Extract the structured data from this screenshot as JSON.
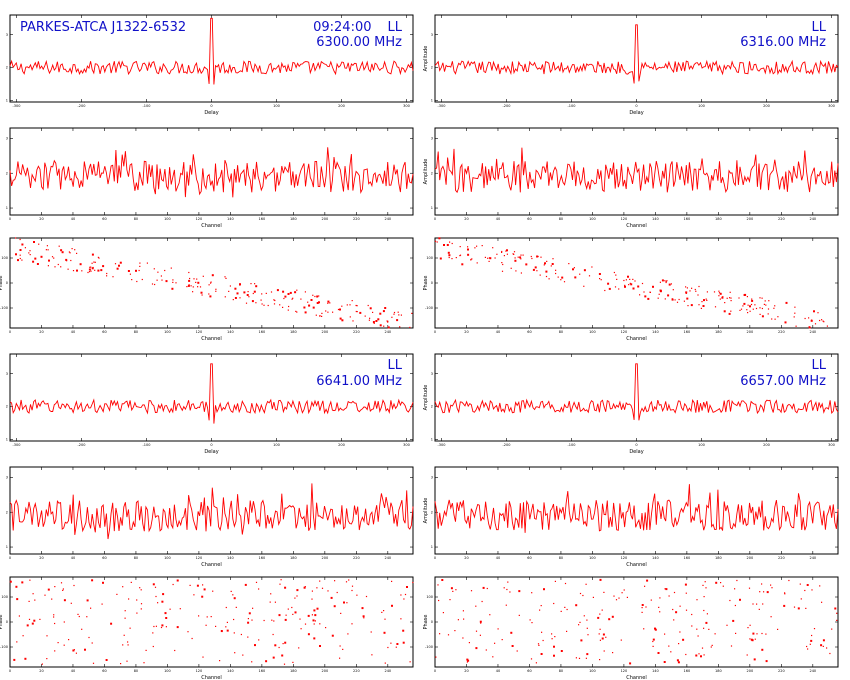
{
  "figure": {
    "title": "PARKES-ATCA J1322-6532",
    "time": "09:24:00"
  },
  "colors": {
    "trace": "#ff0000",
    "annotation": "#1010c8",
    "axis": "#000000"
  },
  "chart_data": [
    {
      "type": "line",
      "panel": "delay",
      "col": 0,
      "block": 0,
      "pol": "LL",
      "freq": "6300.00 MHz",
      "xlabel": "Delay",
      "ylabel": "",
      "x_ticks": [
        "-300",
        "-200",
        "-100",
        "0",
        "100",
        "200",
        "300"
      ],
      "y_ticks": [
        "1",
        "2",
        "3"
      ],
      "xlim": [
        -310,
        310
      ],
      "ylim": [
        0.95,
        3.6
      ],
      "peak_x": 0,
      "peak_y": 3.5,
      "baseline": 2.0,
      "noise": 0.2
    },
    {
      "type": "line",
      "panel": "delay",
      "col": 1,
      "block": 0,
      "pol": "LL",
      "freq": "6316.00 MHz",
      "xlabel": "Delay",
      "ylabel": "Amplitude",
      "x_ticks": [
        "-300",
        "-200",
        "-100",
        "0",
        "100",
        "200",
        "300"
      ],
      "y_ticks": [
        "1",
        "2",
        "3"
      ],
      "xlim": [
        -310,
        310
      ],
      "ylim": [
        0.95,
        3.6
      ],
      "peak_x": 0,
      "peak_y": 3.3,
      "baseline": 2.0,
      "noise": 0.2
    },
    {
      "type": "line",
      "panel": "amplitude",
      "col": 0,
      "block": 0,
      "xlabel": "Channel",
      "ylabel": "",
      "x_ticks": [
        "0",
        "20",
        "40",
        "60",
        "80",
        "100",
        "120",
        "140",
        "160",
        "180",
        "200",
        "220",
        "240",
        "260"
      ],
      "y_ticks": [
        "1",
        "2",
        "3"
      ],
      "xlim": [
        0,
        256
      ],
      "ylim": [
        0.8,
        3.3
      ],
      "baseline": 1.9,
      "noise": 0.45
    },
    {
      "type": "line",
      "panel": "amplitude",
      "col": 1,
      "block": 0,
      "xlabel": "Channel",
      "ylabel": "Amplitude",
      "x_ticks": [
        "0",
        "20",
        "40",
        "60",
        "80",
        "100",
        "120",
        "140",
        "160",
        "180",
        "200",
        "220",
        "240",
        "260"
      ],
      "y_ticks": [
        "1",
        "2",
        "3"
      ],
      "xlim": [
        0,
        256
      ],
      "ylim": [
        0.8,
        3.3
      ],
      "baseline": 1.9,
      "noise": 0.45
    },
    {
      "type": "scatter",
      "panel": "phase",
      "col": 0,
      "block": 0,
      "xlabel": "Channel",
      "ylabel": "Phase",
      "x_ticks": [
        "0",
        "20",
        "40",
        "60",
        "80",
        "100",
        "120",
        "140",
        "160",
        "180",
        "200",
        "220",
        "240"
      ],
      "y_ticks": [
        "-100",
        "0",
        "100"
      ],
      "xlim": [
        0,
        256
      ],
      "ylim": [
        -180,
        180
      ],
      "trend": "descending"
    },
    {
      "type": "scatter",
      "panel": "phase",
      "col": 1,
      "block": 0,
      "xlabel": "Channel",
      "ylabel": "Phase",
      "x_ticks": [
        "0",
        "20",
        "40",
        "60",
        "80",
        "100",
        "120",
        "140",
        "160",
        "180",
        "200",
        "220",
        "240"
      ],
      "y_ticks": [
        "-100",
        "0",
        "100"
      ],
      "xlim": [
        0,
        256
      ],
      "ylim": [
        -180,
        180
      ],
      "trend": "descending"
    },
    {
      "type": "line",
      "panel": "delay",
      "col": 0,
      "block": 1,
      "pol": "LL",
      "freq": "6641.00 MHz",
      "xlabel": "Delay",
      "ylabel": "",
      "x_ticks": [
        "-300",
        "-200",
        "-100",
        "0",
        "100",
        "200",
        "300"
      ],
      "y_ticks": [
        "1",
        "2",
        "3"
      ],
      "xlim": [
        -310,
        310
      ],
      "ylim": [
        0.95,
        3.6
      ],
      "peak_x": 0,
      "peak_y": 3.3,
      "baseline": 2.0,
      "noise": 0.2
    },
    {
      "type": "line",
      "panel": "delay",
      "col": 1,
      "block": 1,
      "pol": "LL",
      "freq": "6657.00 MHz",
      "xlabel": "Delay",
      "ylabel": "Amplitude",
      "x_ticks": [
        "-300",
        "-200",
        "-100",
        "0",
        "100",
        "200",
        "300"
      ],
      "y_ticks": [
        "1",
        "2",
        "3"
      ],
      "xlim": [
        -310,
        310
      ],
      "ylim": [
        0.95,
        3.6
      ],
      "peak_x": 0,
      "peak_y": 3.3,
      "baseline": 2.0,
      "noise": 0.2
    },
    {
      "type": "line",
      "panel": "amplitude",
      "col": 0,
      "block": 1,
      "xlabel": "Channel",
      "ylabel": "",
      "x_ticks": [
        "0",
        "20",
        "40",
        "60",
        "80",
        "100",
        "120",
        "140",
        "160",
        "180",
        "200",
        "220",
        "240",
        "260"
      ],
      "y_ticks": [
        "1",
        "2",
        "3"
      ],
      "xlim": [
        0,
        256
      ],
      "ylim": [
        0.8,
        3.3
      ],
      "baseline": 1.9,
      "noise": 0.45
    },
    {
      "type": "line",
      "panel": "amplitude",
      "col": 1,
      "block": 1,
      "xlabel": "Channel",
      "ylabel": "Amplitude",
      "x_ticks": [
        "0",
        "20",
        "40",
        "60",
        "80",
        "100",
        "120",
        "140",
        "160",
        "180",
        "200",
        "220",
        "240",
        "260"
      ],
      "y_ticks": [
        "1",
        "2",
        "3"
      ],
      "xlim": [
        0,
        256
      ],
      "ylim": [
        0.8,
        3.3
      ],
      "baseline": 1.9,
      "noise": 0.45
    },
    {
      "type": "scatter",
      "panel": "phase",
      "col": 0,
      "block": 1,
      "xlabel": "Channel",
      "ylabel": "Phase",
      "x_ticks": [
        "0",
        "20",
        "40",
        "60",
        "80",
        "100",
        "120",
        "140",
        "160",
        "180",
        "200",
        "220",
        "240"
      ],
      "y_ticks": [
        "-100",
        "0",
        "100"
      ],
      "xlim": [
        0,
        256
      ],
      "ylim": [
        -180,
        180
      ],
      "trend": "random"
    },
    {
      "type": "scatter",
      "panel": "phase",
      "col": 1,
      "block": 1,
      "xlabel": "Channel",
      "ylabel": "Phase",
      "x_ticks": [
        "0",
        "20",
        "40",
        "60",
        "80",
        "100",
        "120",
        "140",
        "160",
        "180",
        "200",
        "220",
        "240"
      ],
      "y_ticks": [
        "-100",
        "0",
        "100"
      ],
      "xlim": [
        0,
        256
      ],
      "ylim": [
        -180,
        180
      ],
      "trend": "random"
    }
  ]
}
